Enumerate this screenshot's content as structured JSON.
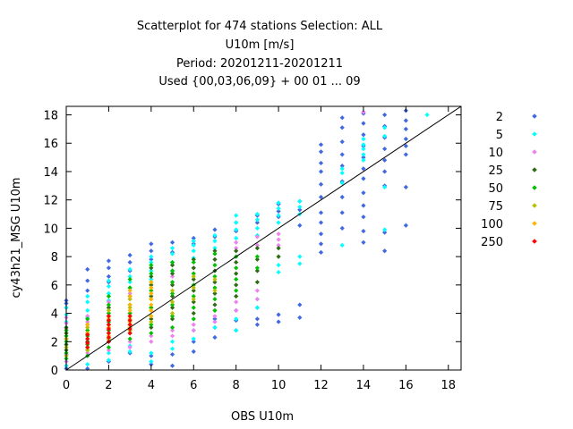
{
  "chart_data": {
    "type": "scatter",
    "title_lines": [
      "Scatterplot for  474 stations Selection: ALL",
      "U10m [m/s]",
      "Period: 20201211-20201211",
      "Used {00,03,06,09} + 00 01 ... 09"
    ],
    "xlabel": "OBS U10m",
    "ylabel": "cy43h21_MSG U10m",
    "xlim": [
      0,
      18.6
    ],
    "ylim": [
      0,
      18.6
    ],
    "xticks": [
      0,
      2,
      4,
      6,
      8,
      10,
      12,
      14,
      16,
      18
    ],
    "yticks": [
      0,
      2,
      4,
      6,
      8,
      10,
      12,
      14,
      16,
      18
    ],
    "diagonal": true,
    "grid": false,
    "legend_position": "right",
    "series": [
      {
        "name": "2",
        "color": "#4169e1",
        "columns": [
          {
            "x": 0,
            "y": [
              0.1,
              0.3,
              4.4,
              4.7,
              4.9
            ]
          },
          {
            "x": 1,
            "y": [
              0.1,
              5.6,
              6.3,
              7.1
            ]
          },
          {
            "x": 2,
            "y": [
              0.6,
              6.2,
              6.6,
              7.2,
              7.7
            ]
          },
          {
            "x": 3,
            "y": [
              1.2,
              7.0,
              7.6,
              8.1
            ]
          },
          {
            "x": 4,
            "y": [
              0.4,
              1.0,
              7.8,
              8.4,
              8.9
            ]
          },
          {
            "x": 5,
            "y": [
              0.3,
              1.1,
              8.3,
              9.0
            ]
          },
          {
            "x": 6,
            "y": [
              1.3,
              2.0,
              8.9,
              9.3
            ]
          },
          {
            "x": 7,
            "y": [
              2.3,
              3.0,
              3.6,
              9.4,
              9.9
            ]
          },
          {
            "x": 8,
            "y": [
              2.8,
              3.5,
              4.2,
              9.8,
              10.4
            ]
          },
          {
            "x": 9,
            "y": [
              3.2,
              3.6,
              4.4,
              10.4,
              10.9
            ]
          },
          {
            "x": 10,
            "y": [
              3.4,
              3.9,
              10.8,
              11.2,
              11.7
            ]
          },
          {
            "x": 11,
            "y": [
              3.7,
              4.6,
              10.2,
              11.3,
              11.9
            ]
          },
          {
            "x": 12,
            "y": [
              8.3,
              8.9,
              9.6,
              10.4,
              11.1,
              12.2,
              13.1,
              14.0,
              14.6,
              15.4,
              15.9
            ]
          },
          {
            "x": 13,
            "y": [
              10.0,
              11.1,
              12.2,
              13.3,
              14.4,
              15.2,
              16.1,
              17.1,
              17.8
            ]
          },
          {
            "x": 14,
            "y": [
              9.0,
              9.8,
              10.8,
              11.6,
              12.5,
              13.5,
              14.2,
              15.0,
              15.8,
              16.6,
              17.4,
              18.1
            ]
          },
          {
            "x": 15,
            "y": [
              8.4,
              9.7,
              13.0,
              14.0,
              14.8,
              15.6,
              16.4,
              17.2,
              18.0
            ]
          },
          {
            "x": 16,
            "y": [
              10.2,
              12.9,
              15.2,
              15.8,
              16.3,
              17.0,
              17.6,
              18.3
            ]
          }
        ]
      },
      {
        "name": "5",
        "color": "#00ffff",
        "columns": [
          {
            "x": 0,
            "y": [
              0.3,
              0.6,
              1.0,
              3.4,
              3.9,
              4.4
            ]
          },
          {
            "x": 1,
            "y": [
              0.4,
              3.7,
              4.2,
              4.8,
              5.2
            ]
          },
          {
            "x": 2,
            "y": [
              0.7,
              1.2,
              4.9,
              5.4,
              5.9,
              6.3
            ]
          },
          {
            "x": 3,
            "y": [
              1.3,
              1.7,
              5.6,
              6.2,
              6.6,
              7.1
            ]
          },
          {
            "x": 4,
            "y": [
              0.6,
              1.2,
              6.4,
              7.0,
              7.6,
              8.0
            ]
          },
          {
            "x": 5,
            "y": [
              1.5,
              2.0,
              7.0,
              7.6,
              8.2,
              8.6
            ]
          },
          {
            "x": 6,
            "y": [
              2.2,
              2.8,
              7.9,
              8.4,
              8.8,
              9.1
            ]
          },
          {
            "x": 7,
            "y": [
              3.0,
              3.4,
              8.6,
              9.1,
              9.5
            ]
          },
          {
            "x": 8,
            "y": [
              2.8,
              3.6,
              9.3,
              9.9,
              10.4,
              10.9
            ]
          },
          {
            "x": 9,
            "y": [
              4.4,
              5.0,
              9.5,
              10.0,
              10.6,
              11.0
            ]
          },
          {
            "x": 10,
            "y": [
              6.9,
              7.4,
              10.4,
              10.9,
              11.4,
              11.8
            ]
          },
          {
            "x": 11,
            "y": [
              7.5,
              8.0,
              11.0,
              11.5,
              11.9
            ]
          },
          {
            "x": 13,
            "y": [
              8.8,
              13.2,
              13.9,
              14.2
            ]
          },
          {
            "x": 14,
            "y": [
              14.8,
              15.2,
              15.6,
              15.9,
              16.3
            ]
          },
          {
            "x": 15,
            "y": [
              9.9,
              12.9,
              16.5,
              17.1
            ]
          },
          {
            "x": 17,
            "y": [
              18.0
            ]
          }
        ]
      },
      {
        "name": "10",
        "color": "#ee82ee",
        "columns": [
          {
            "x": 0,
            "y": [
              0.6,
              1.1,
              2.9,
              3.3,
              3.7
            ]
          },
          {
            "x": 1,
            "y": [
              1.2,
              3.0,
              3.4,
              3.8
            ]
          },
          {
            "x": 2,
            "y": [
              1.4,
              4.0,
              4.4,
              4.8
            ]
          },
          {
            "x": 3,
            "y": [
              1.6,
              2.0,
              5.0,
              5.4
            ]
          },
          {
            "x": 4,
            "y": [
              2.0,
              2.4,
              5.6,
              6.0
            ]
          },
          {
            "x": 5,
            "y": [
              2.4,
              2.8,
              6.2,
              6.6
            ]
          },
          {
            "x": 6,
            "y": [
              2.8,
              3.2,
              6.8,
              7.2
            ]
          },
          {
            "x": 7,
            "y": [
              3.4,
              3.8,
              4.2,
              7.8,
              8.2
            ]
          },
          {
            "x": 8,
            "y": [
              4.2,
              4.8,
              8.6,
              9.0
            ]
          },
          {
            "x": 9,
            "y": [
              5.0,
              5.6,
              8.8,
              9.4
            ]
          },
          {
            "x": 10,
            "y": [
              8.8,
              9.2,
              9.6
            ]
          },
          {
            "x": 14,
            "y": [
              18.2
            ]
          }
        ]
      },
      {
        "name": "25",
        "color": "#2e6b14",
        "columns": [
          {
            "x": 0,
            "y": [
              1.4,
              1.8,
              2.2,
              2.6,
              3.0
            ]
          },
          {
            "x": 1,
            "y": [
              1.6,
              2.0,
              2.6,
              3.2
            ]
          },
          {
            "x": 2,
            "y": [
              2.0,
              2.6,
              3.2,
              3.8,
              4.4
            ]
          },
          {
            "x": 3,
            "y": [
              2.6,
              3.2,
              4.0,
              4.6,
              5.2,
              5.8
            ]
          },
          {
            "x": 4,
            "y": [
              3.0,
              3.6,
              4.4,
              5.2,
              6.0,
              6.6,
              7.2
            ]
          },
          {
            "x": 5,
            "y": [
              3.6,
              4.4,
              5.2,
              6.0,
              6.8,
              7.4
            ]
          },
          {
            "x": 6,
            "y": [
              4.0,
              4.8,
              5.6,
              6.4,
              7.2,
              7.8
            ]
          },
          {
            "x": 7,
            "y": [
              4.6,
              5.4,
              6.2,
              7.0,
              7.8,
              8.4
            ]
          },
          {
            "x": 8,
            "y": [
              5.2,
              6.0,
              6.8,
              7.6,
              8.4
            ]
          },
          {
            "x": 9,
            "y": [
              6.2,
              7.0,
              7.8,
              8.6
            ]
          },
          {
            "x": 10,
            "y": [
              8.0,
              8.6
            ]
          }
        ]
      },
      {
        "name": "50",
        "color": "#00c000",
        "columns": [
          {
            "x": 0,
            "y": [
              0.8,
              1.2,
              1.6,
              2.0,
              2.4,
              2.8
            ]
          },
          {
            "x": 1,
            "y": [
              1.0,
              1.4,
              1.8,
              2.4,
              2.8,
              3.6
            ]
          },
          {
            "x": 2,
            "y": [
              1.6,
              2.2,
              2.8,
              3.4,
              4.0,
              4.6,
              5.2
            ]
          },
          {
            "x": 3,
            "y": [
              2.2,
              2.8,
              3.4,
              4.0,
              4.6,
              5.2,
              5.8,
              6.4
            ]
          },
          {
            "x": 4,
            "y": [
              2.6,
              3.2,
              3.8,
              4.4,
              5.0,
              5.6,
              6.2,
              6.8,
              7.4
            ]
          },
          {
            "x": 5,
            "y": [
              3.0,
              3.8,
              4.6,
              5.4,
              6.2,
              7.0,
              7.6
            ]
          },
          {
            "x": 6,
            "y": [
              3.6,
              4.4,
              5.2,
              6.0,
              6.8,
              7.6
            ]
          },
          {
            "x": 7,
            "y": [
              4.2,
              5.0,
              5.8,
              6.6,
              7.4,
              8.2
            ]
          },
          {
            "x": 8,
            "y": [
              5.6,
              6.4,
              7.2,
              8.0
            ]
          },
          {
            "x": 9,
            "y": [
              7.2,
              8.0
            ]
          }
        ]
      },
      {
        "name": "75",
        "color": "#b8c000",
        "columns": [
          {
            "x": 0,
            "y": [
              1.0,
              1.6,
              2.2
            ]
          },
          {
            "x": 1,
            "y": [
              1.4,
              2.2,
              3.0
            ]
          },
          {
            "x": 2,
            "y": [
              2.2,
              3.0,
              3.6,
              4.2
            ]
          },
          {
            "x": 3,
            "y": [
              2.8,
              3.6,
              4.4,
              5.0
            ]
          },
          {
            "x": 4,
            "y": [
              3.4,
              4.2,
              5.0,
              5.8
            ]
          },
          {
            "x": 5,
            "y": [
              4.0,
              4.8,
              5.6
            ]
          },
          {
            "x": 6,
            "y": [
              5.0,
              5.8,
              6.6
            ]
          },
          {
            "x": 7,
            "y": [
              5.6,
              6.4
            ]
          }
        ]
      },
      {
        "name": "100",
        "color": "#ffb400",
        "columns": [
          {
            "x": 1,
            "y": [
              2.6,
              3.2
            ]
          },
          {
            "x": 2,
            "y": [
              2.4,
              3.0,
              3.8
            ]
          },
          {
            "x": 3,
            "y": [
              3.0,
              3.4,
              3.8,
              4.2,
              4.6,
              5.2,
              5.6
            ]
          },
          {
            "x": 4,
            "y": [
              3.8,
              4.2,
              4.6,
              5.0,
              5.4,
              5.8,
              6.2
            ]
          }
        ]
      },
      {
        "name": "250",
        "color": "#ff0000",
        "columns": [
          {
            "x": 1,
            "y": [
              1.6,
              1.9,
              2.2,
              2.5
            ]
          },
          {
            "x": 2,
            "y": [
              2.0,
              2.3,
              2.6,
              2.9,
              3.2,
              3.5,
              3.8
            ]
          },
          {
            "x": 3,
            "y": [
              2.6,
              2.9,
              3.2,
              3.5,
              3.8
            ]
          }
        ]
      }
    ]
  }
}
